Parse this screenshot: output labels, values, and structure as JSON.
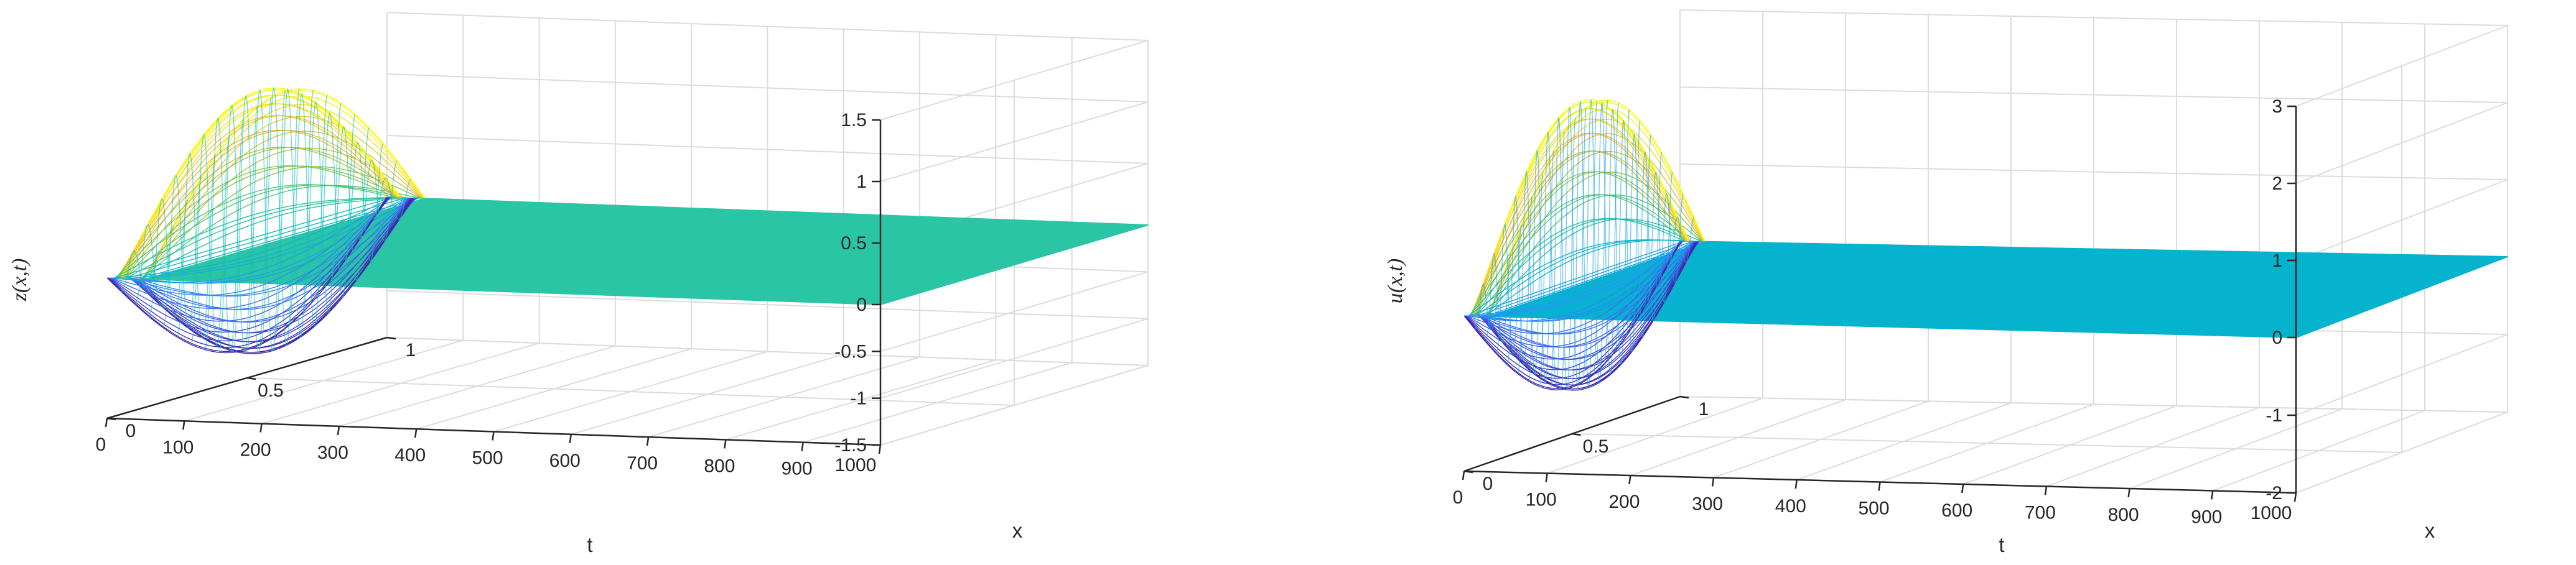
{
  "chart_data": [
    {
      "type": "surface",
      "name": "z-surface",
      "title": "",
      "xlabel": "x",
      "tlabel": "t",
      "zlabel": "z(x,t)",
      "x_range": [
        0,
        1
      ],
      "t_range": [
        0,
        1000
      ],
      "zlim": [
        -1.5,
        1.5
      ],
      "x_ticks": [
        0,
        0.5,
        1
      ],
      "x_tick_labels": [
        "0",
        "0.5",
        "1"
      ],
      "t_ticks": [
        0,
        100,
        200,
        300,
        400,
        500,
        600,
        700,
        800,
        900,
        1000
      ],
      "t_tick_labels": [
        "0",
        "100",
        "200",
        "300",
        "400",
        "500",
        "600",
        "700",
        "800",
        "900",
        "1000"
      ],
      "z_ticks": [
        -1.5,
        -1,
        -0.5,
        0,
        0.5,
        1,
        1.5
      ],
      "z_tick_labels": [
        "-1.5",
        "-1",
        "-0.5",
        "0",
        "0.5",
        "1",
        "1.5"
      ],
      "flat_value": 0,
      "active_t_range": [
        0,
        50
      ],
      "peak_value": 1.2,
      "trough_value": -1.2,
      "flat_color": "#2ac5a5",
      "colormap": "parula",
      "grid": true
    },
    {
      "type": "surface",
      "name": "u-surface",
      "title": "",
      "xlabel": "x",
      "tlabel": "t",
      "zlabel": "u(x,t)",
      "x_range": [
        0,
        1
      ],
      "t_range": [
        0,
        1000
      ],
      "zlim": [
        -2,
        3
      ],
      "x_ticks": [
        0,
        0.5,
        1
      ],
      "x_tick_labels": [
        "0",
        "0.5",
        "1"
      ],
      "t_ticks": [
        0,
        100,
        200,
        300,
        400,
        500,
        600,
        700,
        800,
        900,
        1000
      ],
      "t_tick_labels": [
        "0",
        "100",
        "200",
        "300",
        "400",
        "500",
        "600",
        "700",
        "800",
        "900",
        "1000"
      ],
      "z_ticks": [
        -2,
        -1,
        0,
        1,
        2,
        3
      ],
      "z_tick_labels": [
        "-2",
        "-1",
        "0",
        "1",
        "2",
        "3"
      ],
      "flat_value": 0,
      "active_t_range": [
        0,
        30
      ],
      "peak_value": 2.3,
      "trough_value": -1.4,
      "flat_color": "#05b3cf",
      "colormap": "parula",
      "grid": true
    }
  ]
}
